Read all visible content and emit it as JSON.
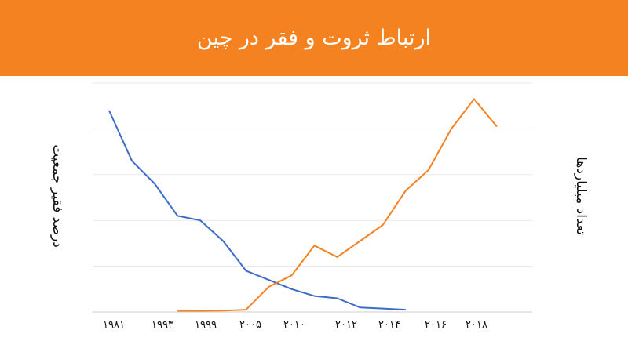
{
  "title": "ارتباط ثروت و فقر در چین",
  "chart_data": {
    "type": "line",
    "title": "ارتباط ثروت و فقر در چین",
    "ylabel_left": "درصد فقیر جمعیت",
    "ylabel_right": "تعداد میلیاردها",
    "x_ticks": [
      "۱۹۸۱",
      "۱۹۹۳",
      "۱۹۹۹",
      "۲۰۰۵",
      "۲۰۱۰",
      "۲۰۱۲",
      "۲۰۱۴",
      "۲۰۱۶",
      "۲۰۱۸"
    ],
    "grid": true,
    "series": [
      {
        "color": "#3d6bc9",
        "axis": "left",
        "x": [
          0,
          1,
          2,
          3,
          4,
          5,
          6,
          7,
          8,
          9,
          10,
          11,
          12,
          13
        ],
        "y": [
          88,
          66,
          56,
          42,
          40,
          31,
          18,
          14,
          10,
          7,
          6,
          2,
          1.5,
          1
        ]
      },
      {
        "color": "#f58220",
        "axis": "right",
        "x": [
          3,
          4,
          5,
          6,
          7,
          8,
          9,
          10,
          11,
          12,
          13,
          14,
          15,
          16,
          17
        ],
        "y": [
          0.5,
          0.5,
          0.6,
          1,
          11,
          16,
          29,
          24,
          31,
          38,
          53,
          62,
          80,
          93,
          81
        ]
      }
    ],
    "xlim": [
      0,
      17
    ],
    "ylim": [
      0,
      100
    ]
  }
}
